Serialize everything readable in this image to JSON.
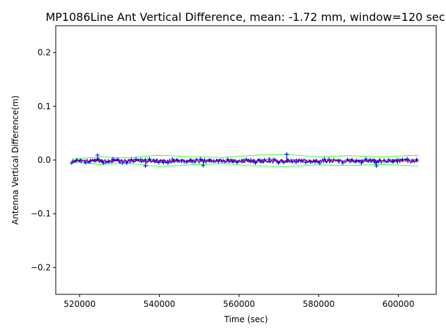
{
  "chart_data": {
    "type": "line",
    "title": "MP1086Line Ant Vertical Difference, mean: -1.72 mm, window=120 sec",
    "xlabel": "Time (sec)",
    "ylabel": "Antenna Vertical Difference(m)",
    "xlim": [
      514000,
      609500
    ],
    "ylim": [
      -0.25,
      0.25
    ],
    "xticks": [
      520000,
      540000,
      560000,
      580000,
      600000
    ],
    "xtick_labels": [
      "520000",
      "540000",
      "560000",
      "580000",
      "600000"
    ],
    "yticks": [
      0.2,
      0.1,
      0.0,
      -0.1,
      -0.2
    ],
    "ytick_labels": [
      "0.2",
      "0.1",
      "0.0",
      "−0.1",
      "−0.2"
    ],
    "grid": false,
    "x_range": [
      518000,
      605000
    ],
    "series": [
      {
        "role": "data",
        "color": "#0000ff",
        "style": "line with plus markers",
        "mean": -0.00172,
        "spread": 0.004,
        "spikes": [
          {
            "x": 524500,
            "y": 0.009
          },
          {
            "x": 536500,
            "y": -0.011
          },
          {
            "x": 551000,
            "y": -0.01
          },
          {
            "x": 572000,
            "y": 0.011
          },
          {
            "x": 594500,
            "y": -0.011
          }
        ]
      },
      {
        "role": "upper envelope",
        "color": "#00ff00",
        "x": [
          518000,
          525000,
          532000,
          540000,
          548000,
          556000,
          564000,
          572000,
          580000,
          588000,
          596000,
          605000
        ],
        "values": [
          0.002,
          0.006,
          0.004,
          0.009,
          0.006,
          0.005,
          0.009,
          0.01,
          0.006,
          0.008,
          0.006,
          0.009
        ]
      },
      {
        "role": "lower envelope",
        "color": "#00ff00",
        "x": [
          518000,
          525000,
          532000,
          540000,
          548000,
          556000,
          564000,
          572000,
          580000,
          588000,
          596000,
          605000
        ],
        "values": [
          -0.004,
          -0.008,
          -0.006,
          -0.012,
          -0.009,
          -0.007,
          -0.011,
          -0.012,
          -0.009,
          -0.01,
          -0.008,
          -0.011
        ]
      },
      {
        "role": "running mean",
        "color": "#ff0000",
        "x": [
          518000,
          605000
        ],
        "values": [
          -0.00172,
          -0.00172
        ]
      }
    ]
  }
}
